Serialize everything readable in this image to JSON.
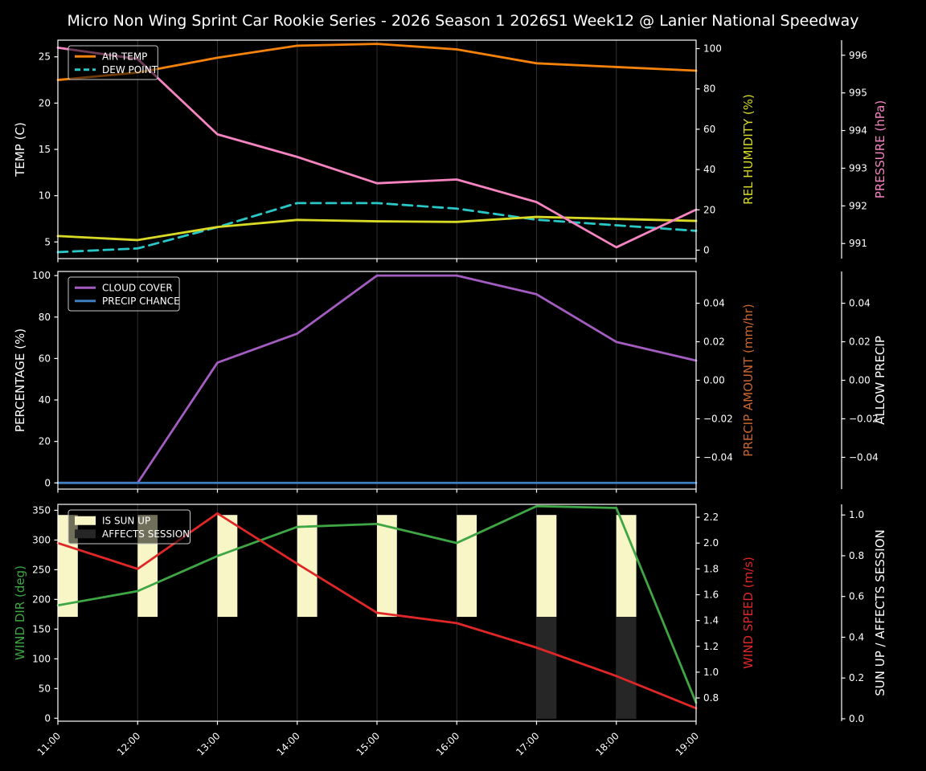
{
  "title": "Micro Non Wing Sprint Car Rookie Series - 2026 Season 1 2026S1 Week12 @ Lanier National Speedway",
  "x_labels": [
    "11:00",
    "12:00",
    "13:00",
    "14:00",
    "15:00",
    "16:00",
    "17:00",
    "18:00",
    "19:00"
  ],
  "colors": {
    "background": "#000000",
    "text": "#ffffff",
    "spine": "#ffffff",
    "grid": "#303030",
    "legend_border": "#c8c8c8",
    "air_temp": "#f5820b",
    "dew_point": "#29c7c7",
    "rel_humidity": "#d9da26",
    "pressure": "#f584c0",
    "cloud_cover": "#a35cc0",
    "precip_chance": "#3e7fc1",
    "precip_amount": "#c9662e",
    "allow_precip": "#ffffff",
    "wind_dir": "#3fa645",
    "wind_speed": "#e02727",
    "sun_up_bar": "#f8f5c6",
    "affects_bar": "#262626"
  },
  "chart_data": [
    {
      "id": "temperature",
      "type": "line",
      "categories": [
        "11:00",
        "12:00",
        "13:00",
        "14:00",
        "15:00",
        "16:00",
        "17:00",
        "18:00",
        "19:00"
      ],
      "axes": {
        "left": {
          "label": "TEMP (C)",
          "label_color": "text",
          "ticks": [
            5,
            10,
            15,
            20,
            25
          ],
          "decimals": 0,
          "lim": [
            3.2,
            26.8
          ]
        },
        "right": {
          "label": "REL HUMIDITY (%)",
          "label_color": "rel_humidity",
          "ticks": [
            0,
            20,
            40,
            60,
            80,
            100
          ],
          "decimals": 0,
          "lim": [
            -4.2,
            104.2
          ]
        },
        "right_offset": {
          "label": "PRESSURE (hPa)",
          "label_color": "pressure",
          "ticks": [
            991,
            992,
            993,
            994,
            995,
            996
          ],
          "decimals": 0,
          "lim": [
            990.6,
            996.4
          ]
        }
      },
      "series": [
        {
          "name": "AIR TEMP",
          "axis": "left",
          "color": "air_temp",
          "values": [
            22.5,
            23.3,
            24.9,
            26.2,
            26.4,
            25.8,
            24.3,
            23.9,
            23.5
          ]
        },
        {
          "name": "DEW POINT",
          "axis": "left",
          "color": "dew_point",
          "dashed": true,
          "values": [
            3.9,
            4.3,
            6.6,
            9.2,
            9.2,
            8.6,
            7.4,
            6.8,
            6.2
          ]
        },
        {
          "name": "REL HUMIDITY",
          "axis": "right",
          "color": "rel_humidity",
          "values": [
            7,
            5,
            11.5,
            15,
            14.3,
            14,
            16.5,
            15.5,
            14.5
          ]
        },
        {
          "name": "PRESSURE",
          "axis": "right_offset",
          "color": "pressure",
          "values": [
            996.2,
            995.9,
            993.9,
            993.3,
            992.6,
            992.7,
            992.1,
            990.9,
            991.9
          ]
        }
      ],
      "legend": [
        {
          "label": "AIR TEMP",
          "swatch": "line",
          "color": "air_temp"
        },
        {
          "label": "DEW POINT",
          "swatch": "dashed",
          "color": "dew_point"
        }
      ]
    },
    {
      "id": "precipitation",
      "type": "line",
      "categories": [
        "11:00",
        "12:00",
        "13:00",
        "14:00",
        "15:00",
        "16:00",
        "17:00",
        "18:00",
        "19:00"
      ],
      "axes": {
        "left": {
          "label": "PERCENTAGE (%)",
          "label_color": "text",
          "ticks": [
            0,
            20,
            40,
            60,
            80,
            100
          ],
          "decimals": 0,
          "lim": [
            -3,
            102
          ]
        },
        "right": {
          "label": "PRECIP AMOUNT (mm/hr)",
          "label_color": "precip_amount",
          "ticks": [
            -0.04,
            -0.02,
            0,
            0.02,
            0.04
          ],
          "decimals": 2,
          "lim": [
            -0.0565,
            0.0565
          ]
        },
        "right_offset": {
          "label": "ALLOW PRECIP",
          "label_color": "text",
          "ticks": [
            -0.04,
            -0.02,
            0,
            0.02,
            0.04
          ],
          "decimals": 2,
          "lim": [
            -0.0565,
            0.0565
          ]
        }
      },
      "series": [
        {
          "name": "CLOUD COVER",
          "axis": "left",
          "color": "cloud_cover",
          "values": [
            0,
            0,
            58,
            72,
            100,
            100,
            91,
            68,
            59
          ]
        },
        {
          "name": "PRECIP CHANCE",
          "axis": "left",
          "color": "precip_chance",
          "values": [
            0,
            0,
            0,
            0,
            0,
            0,
            0,
            0,
            0
          ]
        },
        {
          "name": "PRECIP AMOUNT",
          "axis": "right",
          "color": "precip_amount",
          "hidden": true,
          "values": [
            0,
            0,
            0,
            0,
            0,
            0,
            0,
            0,
            0
          ]
        },
        {
          "name": "ALLOW PRECIP",
          "axis": "right_offset",
          "color": "allow_precip",
          "hidden": true,
          "values": [
            0,
            0,
            0,
            0,
            0,
            0,
            0,
            0,
            0
          ]
        }
      ],
      "legend": [
        {
          "label": "CLOUD COVER",
          "swatch": "line",
          "color": "cloud_cover"
        },
        {
          "label": "PRECIP CHANCE",
          "swatch": "line",
          "color": "precip_chance"
        }
      ]
    },
    {
      "id": "wind",
      "type": "line+bar",
      "categories": [
        "11:00",
        "12:00",
        "13:00",
        "14:00",
        "15:00",
        "16:00",
        "17:00",
        "18:00",
        "19:00"
      ],
      "axes": {
        "left": {
          "label": "WIND DIR (deg)",
          "label_color": "wind_dir",
          "ticks": [
            0,
            50,
            100,
            150,
            200,
            250,
            300,
            350
          ],
          "decimals": 0,
          "lim": [
            -5,
            360
          ]
        },
        "right": {
          "label": "WIND SPEED (m/s)",
          "label_color": "wind_speed",
          "ticks": [
            0.8,
            1.0,
            1.2,
            1.4,
            1.6,
            1.8,
            2.0,
            2.2
          ],
          "decimals": 1,
          "lim": [
            0.62,
            2.3
          ]
        },
        "right_offset": {
          "label": "SUN UP / AFFECTS SESSION",
          "label_color": "text",
          "ticks": [
            0,
            0.2,
            0.4,
            0.6,
            0.8,
            1.0
          ],
          "decimals": 1,
          "lim": [
            -0.012,
            1.052
          ]
        }
      },
      "bars": [
        {
          "name": "IS SUN UP",
          "axis": "right_offset",
          "color": "sun_up_bar",
          "span": [
            0.5,
            1.0
          ],
          "values": [
            1,
            1,
            1,
            1,
            1,
            1,
            1,
            1,
            0
          ]
        },
        {
          "name": "AFFECTS SESSION",
          "axis": "right_offset",
          "color": "affects_bar",
          "span": [
            0,
            0.5
          ],
          "values": [
            0,
            0,
            0,
            0,
            0,
            0,
            1,
            1,
            0
          ]
        }
      ],
      "series": [
        {
          "name": "WIND DIR",
          "axis": "left",
          "color": "wind_dir",
          "values": [
            190,
            214,
            273,
            322,
            327,
            295,
            357,
            354,
            26
          ]
        },
        {
          "name": "WIND SPEED",
          "axis": "right",
          "color": "wind_speed",
          "values": [
            2.0,
            1.8,
            2.23,
            1.84,
            1.46,
            1.38,
            1.19,
            0.97,
            0.72
          ]
        }
      ],
      "legend": [
        {
          "label": "IS SUN UP",
          "swatch": "patch",
          "color": "sun_up_bar"
        },
        {
          "label": "AFFECTS SESSION",
          "swatch": "patch",
          "color": "affects_bar"
        }
      ]
    }
  ]
}
